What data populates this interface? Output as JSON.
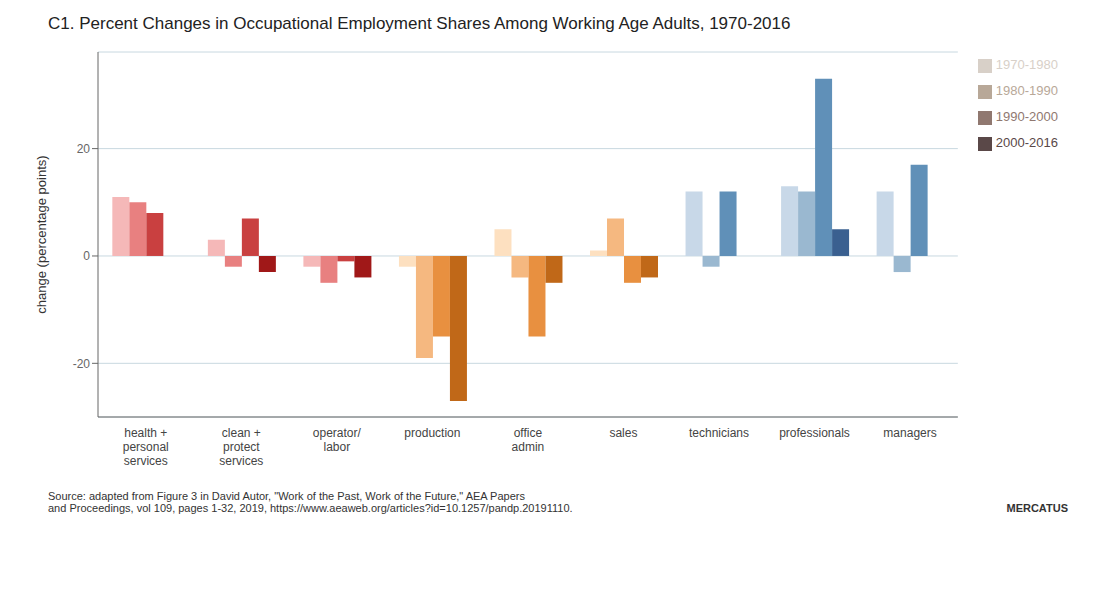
{
  "chart_data": {
    "type": "bar",
    "title": "C1. Percent Changes in Occupational Employment Shares Among Working Age Adults, 1970-2016",
    "ylabel": "change (percentage points)",
    "categories": [
      "health +\npersonal\nservices",
      "clean +\nprotect\nservices",
      "operator/\nlabor",
      "production",
      "office\nadmin",
      "sales",
      "technicians",
      "professionals",
      "managers"
    ],
    "series": [
      {
        "name": "1970-1980",
        "color": "#d8d0c8",
        "colors": [
          "#f5b8b8",
          "#f5b8b8",
          "#f5b8b8",
          "#fde0c0",
          "#fde0c0",
          "#fde0c0",
          "#c8d8e8",
          "#c8d8e8",
          "#c8d8e8"
        ],
        "values": [
          11,
          3,
          -2,
          -2,
          5,
          1,
          12,
          13,
          12
        ]
      },
      {
        "name": "1980-1990",
        "color": "#b8a898",
        "colors": [
          "#e88080",
          "#e88080",
          "#e88080",
          "#f5b880",
          "#f5b880",
          "#f5b880",
          "#9ab8d0",
          "#9ab8d0",
          "#9ab8d0"
        ],
        "values": [
          10,
          -2,
          -5,
          -19,
          -4,
          7,
          -2,
          12,
          -3
        ]
      },
      {
        "name": "1990-2000",
        "color": "#907870",
        "colors": [
          "#c94040",
          "#c94040",
          "#c94040",
          "#e89040",
          "#e89040",
          "#e89040",
          "#6090b8",
          "#6090b8",
          "#6090b8"
        ],
        "values": [
          8,
          7,
          -1,
          -15,
          -15,
          -5,
          12,
          33,
          17
        ]
      },
      {
        "name": "2000-2016",
        "color": "#5a4848",
        "colors": [
          "#a01818",
          "#a01818",
          "#a01818",
          "#c06818",
          "#c06818",
          "#c06818",
          "#3a6090",
          "#3a6090",
          "#3a6090"
        ],
        "values": [
          0,
          -3,
          -4,
          -27,
          -5,
          -4,
          0,
          5,
          0
        ]
      }
    ],
    "ylim": [
      -30,
      38
    ],
    "yticks": [
      -20,
      0,
      20
    ],
    "grid": true,
    "legend": "upper right",
    "annotations": [
      "Source: adapted from Figure 3 in David Autor, \"Work of the Past, Work of the Future,\" AEA Papers\nand Proceedings, vol 109, pages 1-32, 2019, https://www.aeaweb.org/articles?id=10.1257/pandp.20191110.",
      "MERCATUS"
    ]
  }
}
